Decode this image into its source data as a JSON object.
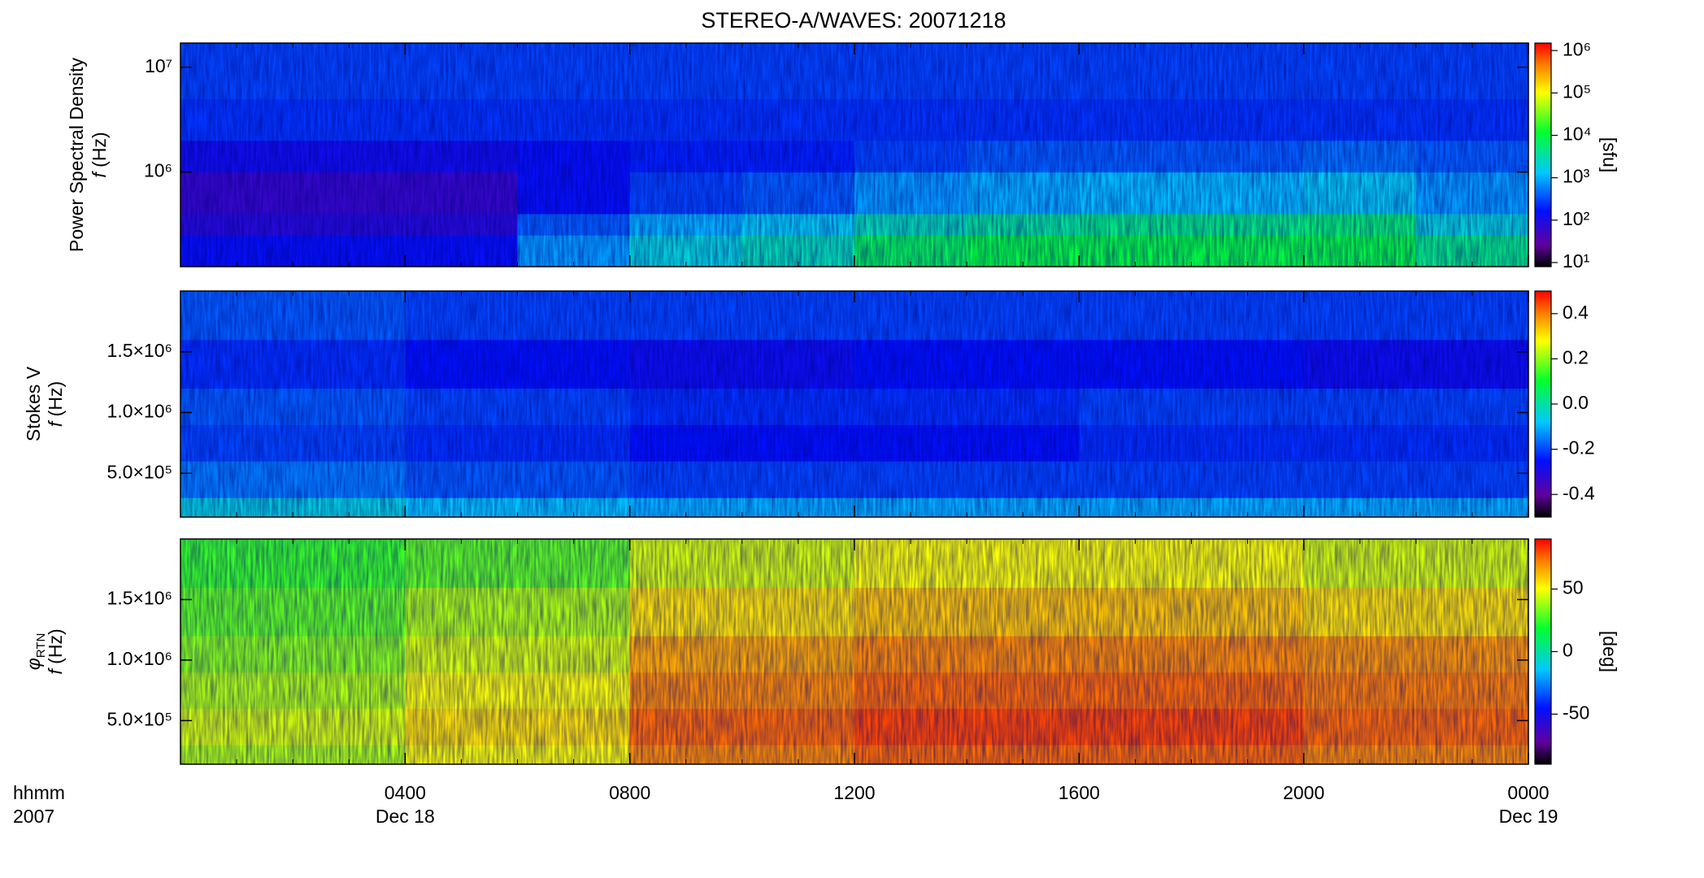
{
  "chart_data": [
    {
      "type": "heatmap",
      "title": "STEREO-A/WAVES: 20071218",
      "ylabel": "Power Spectral Density",
      "ylabel2": "f (Hz)",
      "ylog": true,
      "xlim": [
        0,
        24
      ],
      "ylim": [
        125000,
        17000000
      ],
      "yticks": [
        {
          "value": 1000000,
          "label": "10⁶"
        },
        {
          "value": 10000000,
          "label": "10⁷"
        }
      ],
      "x_edges": [
        0,
        2,
        4,
        6,
        8,
        10,
        12,
        14,
        16,
        18,
        20,
        22,
        24
      ],
      "y_edges": [
        125000,
        250000,
        400000,
        1000000,
        2000000,
        5000000,
        17000000
      ],
      "z": [
        [
          150,
          150,
          150,
          800,
          2000,
          3000,
          8000,
          10000,
          10000,
          10000,
          10000,
          5000
        ],
        [
          80,
          80,
          80,
          400,
          1000,
          1500,
          3000,
          4000,
          5000,
          5000,
          6000,
          2000
        ],
        [
          60,
          60,
          60,
          150,
          300,
          400,
          800,
          1000,
          1200,
          1200,
          1500,
          800
        ],
        [
          120,
          120,
          120,
          150,
          200,
          200,
          300,
          400,
          400,
          400,
          500,
          400
        ],
        [
          250,
          250,
          250,
          250,
          250,
          250,
          250,
          250,
          250,
          250,
          250,
          250
        ],
        [
          300,
          300,
          300,
          300,
          300,
          300,
          300,
          300,
          300,
          300,
          300,
          300
        ]
      ],
      "clog": true,
      "clim": [
        8,
        1500000
      ],
      "cticks": [
        {
          "value": 10,
          "label": "10¹"
        },
        {
          "value": 100,
          "label": "10²"
        },
        {
          "value": 1000,
          "label": "10³"
        },
        {
          "value": 10000,
          "label": "10⁴"
        },
        {
          "value": 100000,
          "label": "10⁵"
        },
        {
          "value": 1000000,
          "label": "10⁶"
        }
      ],
      "clabel": "[sfu]"
    },
    {
      "type": "heatmap",
      "ylabel": "Stokes V",
      "ylabel2": "f (Hz)",
      "ylog": false,
      "xlim": [
        0,
        24
      ],
      "ylim": [
        140000,
        2000000
      ],
      "yticks": [
        {
          "value": 500000,
          "label": "5.0×10⁵"
        },
        {
          "value": 1000000,
          "label": "1.0×10⁶"
        },
        {
          "value": 1500000,
          "label": "1.5×10⁶"
        }
      ],
      "x_edges": [
        0,
        4,
        8,
        12,
        16,
        20,
        24
      ],
      "y_edges": [
        140000,
        300000,
        600000,
        900000,
        1200000,
        1600000,
        2000000
      ],
      "z": [
        [
          -0.05,
          -0.08,
          -0.1,
          -0.1,
          -0.1,
          -0.1
        ],
        [
          -0.15,
          -0.18,
          -0.2,
          -0.2,
          -0.2,
          -0.2
        ],
        [
          -0.2,
          -0.22,
          -0.25,
          -0.25,
          -0.22,
          -0.22
        ],
        [
          -0.18,
          -0.2,
          -0.22,
          -0.22,
          -0.2,
          -0.2
        ],
        [
          -0.22,
          -0.25,
          -0.27,
          -0.25,
          -0.25,
          -0.27
        ],
        [
          -0.18,
          -0.2,
          -0.2,
          -0.2,
          -0.2,
          -0.2
        ]
      ],
      "clog": false,
      "clim": [
        -0.5,
        0.5
      ],
      "cticks": [
        -0.4,
        -0.2,
        {
          "value": 0,
          "label": "0.0"
        },
        0.2,
        0.4
      ]
    },
    {
      "type": "heatmap",
      "ylabel_symbol": "φ",
      "ylabel_subscript": "RTN",
      "ylabel2": "f (Hz)",
      "ylog": false,
      "xlim": [
        0,
        24
      ],
      "ylim": [
        140000,
        2000000
      ],
      "yticks": [
        {
          "value": 500000,
          "label": "5.0×10⁵"
        },
        {
          "value": 1000000,
          "label": "1.0×10⁶"
        },
        {
          "value": 1500000,
          "label": "1.5×10⁶"
        }
      ],
      "x_edges": [
        0,
        4,
        8,
        12,
        16,
        20,
        24
      ],
      "y_edges": [
        140000,
        300000,
        600000,
        900000,
        1200000,
        1600000,
        2000000
      ],
      "z": [
        [
          40,
          50,
          70,
          75,
          75,
          70
        ],
        [
          45,
          55,
          75,
          80,
          80,
          75
        ],
        [
          40,
          50,
          70,
          75,
          75,
          72
        ],
        [
          35,
          45,
          65,
          70,
          70,
          68
        ],
        [
          30,
          40,
          55,
          60,
          60,
          55
        ],
        [
          25,
          30,
          45,
          50,
          50,
          45
        ]
      ],
      "clog": false,
      "clim": [
        -90,
        90
      ],
      "cticks": [
        -50,
        0,
        50
      ],
      "clabel": "[deg]",
      "xticks": [
        {
          "value": 4,
          "label": "0400"
        },
        {
          "value": 8,
          "label": "0800"
        },
        {
          "value": 12,
          "label": "1200"
        },
        {
          "value": 16,
          "label": "1600"
        },
        {
          "value": 20,
          "label": "2000"
        },
        {
          "value": 24,
          "label": "0000"
        }
      ],
      "x_dates": [
        {
          "value": 4,
          "label": "Dec 18"
        },
        {
          "value": 24,
          "label": "Dec 19"
        }
      ],
      "x_corner_labels": [
        "hhmm",
        "2007"
      ]
    }
  ]
}
